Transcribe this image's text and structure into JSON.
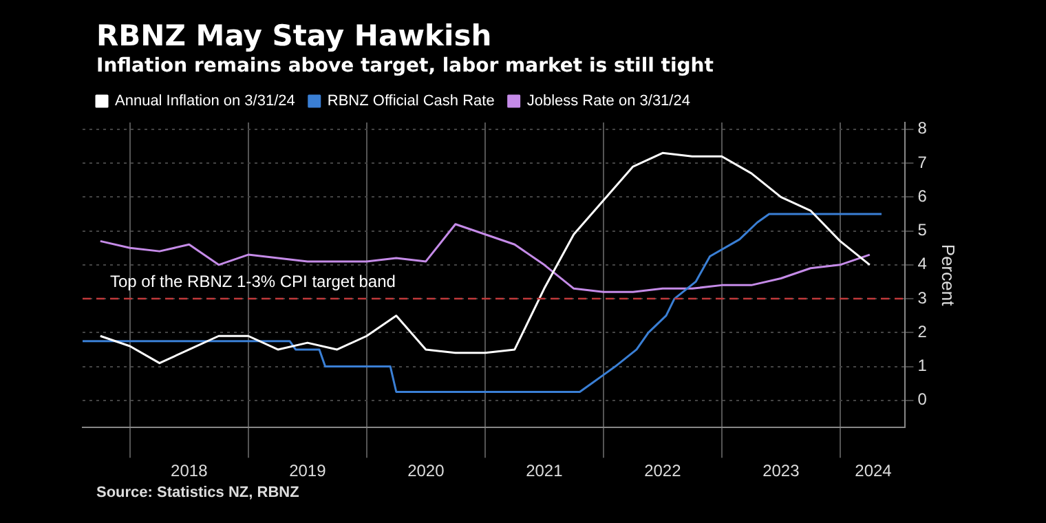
{
  "chart_data": {
    "type": "line",
    "title": "RBNZ May Stay Hawkish",
    "subtitle": "Inflation remains above target, labor market is still tight",
    "ylabel": "Percent",
    "series": [
      {
        "name": "Annual Inflation on 3/31/24",
        "color": "#ffffff",
        "x": [
          2017.75,
          2018.0,
          2018.25,
          2018.5,
          2018.75,
          2019.0,
          2019.25,
          2019.5,
          2019.75,
          2020.0,
          2020.25,
          2020.5,
          2020.75,
          2021.0,
          2021.25,
          2021.5,
          2021.75,
          2022.0,
          2022.25,
          2022.5,
          2022.75,
          2023.0,
          2023.25,
          2023.5,
          2023.75,
          2024.0,
          2024.25
        ],
        "values": [
          1.9,
          1.6,
          1.1,
          1.5,
          1.9,
          1.9,
          1.5,
          1.7,
          1.5,
          1.9,
          2.5,
          1.5,
          1.4,
          1.4,
          1.5,
          3.3,
          4.9,
          5.9,
          6.9,
          7.3,
          7.2,
          7.2,
          6.7,
          6.0,
          5.6,
          4.7,
          4.0
        ]
      },
      {
        "name": "RBNZ Official Cash Rate",
        "color": "#3a7fd5",
        "x": [
          2017.6,
          2019.35,
          2019.4,
          2019.6,
          2019.65,
          2020.2,
          2020.25,
          2021.8,
          2021.9,
          2022.0,
          2022.1,
          2022.28,
          2022.38,
          2022.53,
          2022.6,
          2022.78,
          2022.9,
          2023.15,
          2023.3,
          2023.4,
          2024.35
        ],
        "values": [
          1.75,
          1.75,
          1.5,
          1.5,
          1.0,
          1.0,
          0.25,
          0.25,
          0.5,
          0.75,
          1.0,
          1.5,
          2.0,
          2.5,
          3.0,
          3.5,
          4.25,
          4.75,
          5.25,
          5.5,
          5.5
        ]
      },
      {
        "name": "Jobless Rate on 3/31/24",
        "color": "#c58be8",
        "x": [
          2017.75,
          2018.0,
          2018.25,
          2018.5,
          2018.75,
          2019.0,
          2019.25,
          2019.5,
          2019.75,
          2020.0,
          2020.25,
          2020.5,
          2020.75,
          2021.0,
          2021.25,
          2021.5,
          2021.75,
          2022.0,
          2022.25,
          2022.5,
          2022.75,
          2023.0,
          2023.25,
          2023.5,
          2023.75,
          2024.0,
          2024.25
        ],
        "values": [
          4.7,
          4.5,
          4.4,
          4.6,
          4.0,
          4.3,
          4.2,
          4.1,
          4.1,
          4.1,
          4.2,
          4.1,
          5.2,
          4.9,
          4.6,
          4.0,
          3.3,
          3.2,
          3.2,
          3.3,
          3.3,
          3.4,
          3.4,
          3.6,
          3.9,
          4.0,
          4.3
        ]
      }
    ],
    "xlim": [
      2017.6,
      2024.55
    ],
    "xticks": [
      {
        "value": 2018,
        "label": null
      },
      {
        "value": 2018.5,
        "label": "2018"
      },
      {
        "value": 2019,
        "label": null
      },
      {
        "value": 2019.5,
        "label": "2019"
      },
      {
        "value": 2020,
        "label": null
      },
      {
        "value": 2020.5,
        "label": "2020"
      },
      {
        "value": 2021,
        "label": null
      },
      {
        "value": 2021.5,
        "label": "2021"
      },
      {
        "value": 2022,
        "label": null
      },
      {
        "value": 2022.5,
        "label": "2022"
      },
      {
        "value": 2023,
        "label": null
      },
      {
        "value": 2023.5,
        "label": "2023"
      },
      {
        "value": 2024,
        "label": null
      },
      {
        "value": 2024.28,
        "label": "2024"
      }
    ],
    "ylim": [
      -0.8,
      8.2
    ],
    "yticks": [
      0,
      1,
      2,
      3,
      4,
      5,
      6,
      7,
      8
    ],
    "ref_lines": [
      {
        "axis": "y",
        "value": 3,
        "label": "Top of the RBNZ 1-3% CPI target band",
        "color": "#c0393b",
        "line_style": "dashed"
      }
    ],
    "annotations": [
      "Source: Statistics NZ, RBNZ"
    ],
    "grid": true,
    "legend": "top left",
    "marker": "none",
    "line_style": "solid"
  }
}
